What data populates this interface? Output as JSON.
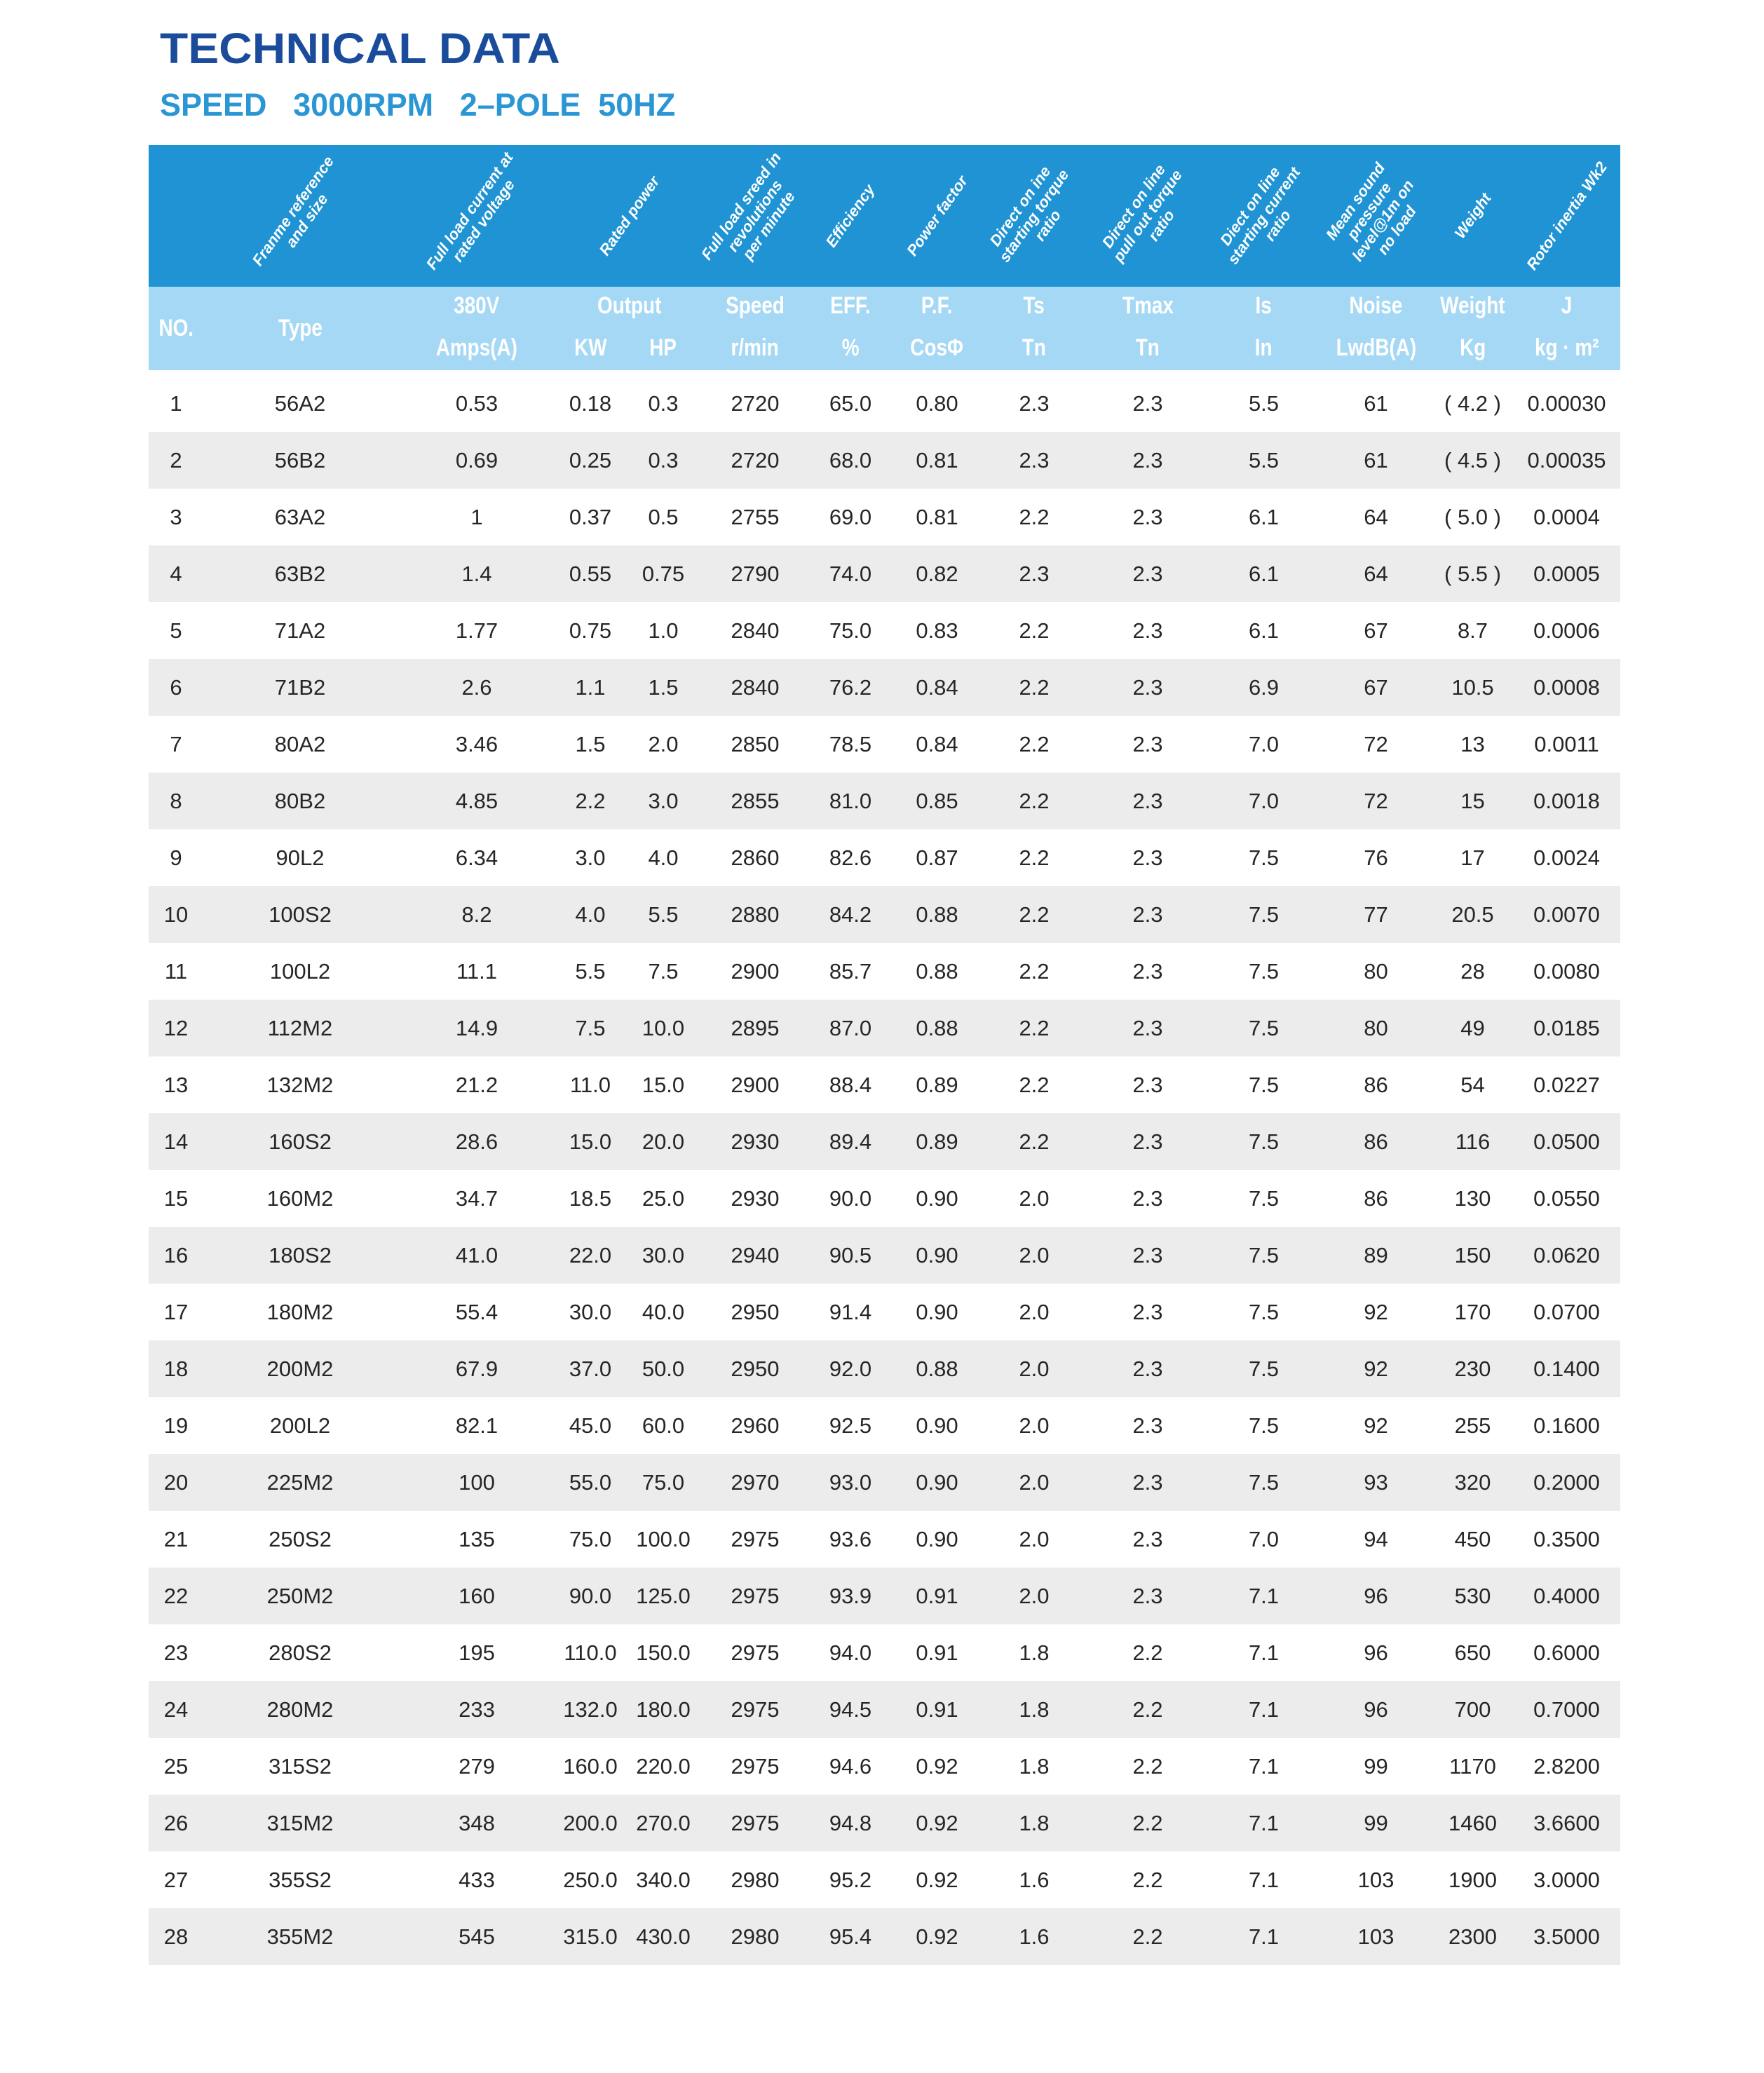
{
  "title": "TECHNICAL DATA",
  "subtitle": "SPEED   3000RPM   2–POLE  50HZ",
  "colors": {
    "title": "#1b4c9c",
    "subtitle": "#2a96d4",
    "header_dark": "#1f93d3",
    "header_light": "#a5d8f4",
    "row_alt": "#ececec"
  },
  "header": {
    "descriptions": [
      "",
      "Franme reference\nand size",
      "Full load current at\nrated voltage",
      "Rated power",
      "Full load sreed in\nrevolutions\nper minute",
      "Efficiency",
      "Power factor",
      "Direct on ine\nstarting torque\nratio",
      "Direct on line\npull out torque\nratio",
      "Diect on line\nstarting current\nratio",
      "Mean sound\npressure\nlevel@1m on\nno load",
      "Weight",
      "Rotor inertia Wk2"
    ],
    "no": "NO.",
    "type": "Type",
    "labels": [
      "380V",
      "Output",
      "Speed",
      "EFF.",
      "P.F.",
      "Ts",
      "Tmax",
      "Is",
      "Noise",
      "Weight",
      "J"
    ],
    "units": [
      "Amps(A)",
      "KW",
      "HP",
      "r/min",
      "%",
      "CosΦ",
      "Tn",
      "Tn",
      "In",
      "LwdB(A)",
      "Kg",
      "kg · m²"
    ]
  },
  "rows": [
    [
      "1",
      "56A2",
      "0.53",
      "0.18",
      "0.3",
      "2720",
      "65.0",
      "0.80",
      "2.3",
      "2.3",
      "5.5",
      "61",
      "( 4.2 )",
      "0.00030"
    ],
    [
      "2",
      "56B2",
      "0.69",
      "0.25",
      "0.3",
      "2720",
      "68.0",
      "0.81",
      "2.3",
      "2.3",
      "5.5",
      "61",
      "( 4.5 )",
      "0.00035"
    ],
    [
      "3",
      "63A2",
      "1",
      "0.37",
      "0.5",
      "2755",
      "69.0",
      "0.81",
      "2.2",
      "2.3",
      "6.1",
      "64",
      "( 5.0 )",
      "0.0004"
    ],
    [
      "4",
      "63B2",
      "1.4",
      "0.55",
      "0.75",
      "2790",
      "74.0",
      "0.82",
      "2.3",
      "2.3",
      "6.1",
      "64",
      "( 5.5 )",
      "0.0005"
    ],
    [
      "5",
      "71A2",
      "1.77",
      "0.75",
      "1.0",
      "2840",
      "75.0",
      "0.83",
      "2.2",
      "2.3",
      "6.1",
      "67",
      "8.7",
      "0.0006"
    ],
    [
      "6",
      "71B2",
      "2.6",
      "1.1",
      "1.5",
      "2840",
      "76.2",
      "0.84",
      "2.2",
      "2.3",
      "6.9",
      "67",
      "10.5",
      "0.0008"
    ],
    [
      "7",
      "80A2",
      "3.46",
      "1.5",
      "2.0",
      "2850",
      "78.5",
      "0.84",
      "2.2",
      "2.3",
      "7.0",
      "72",
      "13",
      "0.0011"
    ],
    [
      "8",
      "80B2",
      "4.85",
      "2.2",
      "3.0",
      "2855",
      "81.0",
      "0.85",
      "2.2",
      "2.3",
      "7.0",
      "72",
      "15",
      "0.0018"
    ],
    [
      "9",
      "90L2",
      "6.34",
      "3.0",
      "4.0",
      "2860",
      "82.6",
      "0.87",
      "2.2",
      "2.3",
      "7.5",
      "76",
      "17",
      "0.0024"
    ],
    [
      "10",
      "100S2",
      "8.2",
      "4.0",
      "5.5",
      "2880",
      "84.2",
      "0.88",
      "2.2",
      "2.3",
      "7.5",
      "77",
      "20.5",
      "0.0070"
    ],
    [
      "11",
      "100L2",
      "11.1",
      "5.5",
      "7.5",
      "2900",
      "85.7",
      "0.88",
      "2.2",
      "2.3",
      "7.5",
      "80",
      "28",
      "0.0080"
    ],
    [
      "12",
      "112M2",
      "14.9",
      "7.5",
      "10.0",
      "2895",
      "87.0",
      "0.88",
      "2.2",
      "2.3",
      "7.5",
      "80",
      "49",
      "0.0185"
    ],
    [
      "13",
      "132M2",
      "21.2",
      "11.0",
      "15.0",
      "2900",
      "88.4",
      "0.89",
      "2.2",
      "2.3",
      "7.5",
      "86",
      "54",
      "0.0227"
    ],
    [
      "14",
      "160S2",
      "28.6",
      "15.0",
      "20.0",
      "2930",
      "89.4",
      "0.89",
      "2.2",
      "2.3",
      "7.5",
      "86",
      "116",
      "0.0500"
    ],
    [
      "15",
      "160M2",
      "34.7",
      "18.5",
      "25.0",
      "2930",
      "90.0",
      "0.90",
      "2.0",
      "2.3",
      "7.5",
      "86",
      "130",
      "0.0550"
    ],
    [
      "16",
      "180S2",
      "41.0",
      "22.0",
      "30.0",
      "2940",
      "90.5",
      "0.90",
      "2.0",
      "2.3",
      "7.5",
      "89",
      "150",
      "0.0620"
    ],
    [
      "17",
      "180M2",
      "55.4",
      "30.0",
      "40.0",
      "2950",
      "91.4",
      "0.90",
      "2.0",
      "2.3",
      "7.5",
      "92",
      "170",
      "0.0700"
    ],
    [
      "18",
      "200M2",
      "67.9",
      "37.0",
      "50.0",
      "2950",
      "92.0",
      "0.88",
      "2.0",
      "2.3",
      "7.5",
      "92",
      "230",
      "0.1400"
    ],
    [
      "19",
      "200L2",
      "82.1",
      "45.0",
      "60.0",
      "2960",
      "92.5",
      "0.90",
      "2.0",
      "2.3",
      "7.5",
      "92",
      "255",
      "0.1600"
    ],
    [
      "20",
      "225M2",
      "100",
      "55.0",
      "75.0",
      "2970",
      "93.0",
      "0.90",
      "2.0",
      "2.3",
      "7.5",
      "93",
      "320",
      "0.2000"
    ],
    [
      "21",
      "250S2",
      "135",
      "75.0",
      "100.0",
      "2975",
      "93.6",
      "0.90",
      "2.0",
      "2.3",
      "7.0",
      "94",
      "450",
      "0.3500"
    ],
    [
      "22",
      "250M2",
      "160",
      "90.0",
      "125.0",
      "2975",
      "93.9",
      "0.91",
      "2.0",
      "2.3",
      "7.1",
      "96",
      "530",
      "0.4000"
    ],
    [
      "23",
      "280S2",
      "195",
      "110.0",
      "150.0",
      "2975",
      "94.0",
      "0.91",
      "1.8",
      "2.2",
      "7.1",
      "96",
      "650",
      "0.6000"
    ],
    [
      "24",
      "280M2",
      "233",
      "132.0",
      "180.0",
      "2975",
      "94.5",
      "0.91",
      "1.8",
      "2.2",
      "7.1",
      "96",
      "700",
      "0.7000"
    ],
    [
      "25",
      "315S2",
      "279",
      "160.0",
      "220.0",
      "2975",
      "94.6",
      "0.92",
      "1.8",
      "2.2",
      "7.1",
      "99",
      "1170",
      "2.8200"
    ],
    [
      "26",
      "315M2",
      "348",
      "200.0",
      "270.0",
      "2975",
      "94.8",
      "0.92",
      "1.8",
      "2.2",
      "7.1",
      "99",
      "1460",
      "3.6600"
    ],
    [
      "27",
      "355S2",
      "433",
      "250.0",
      "340.0",
      "2980",
      "95.2",
      "0.92",
      "1.6",
      "2.2",
      "7.1",
      "103",
      "1900",
      "3.0000"
    ],
    [
      "28",
      "355M2",
      "545",
      "315.0",
      "430.0",
      "2980",
      "95.4",
      "0.92",
      "1.6",
      "2.2",
      "7.1",
      "103",
      "2300",
      "3.5000"
    ]
  ]
}
